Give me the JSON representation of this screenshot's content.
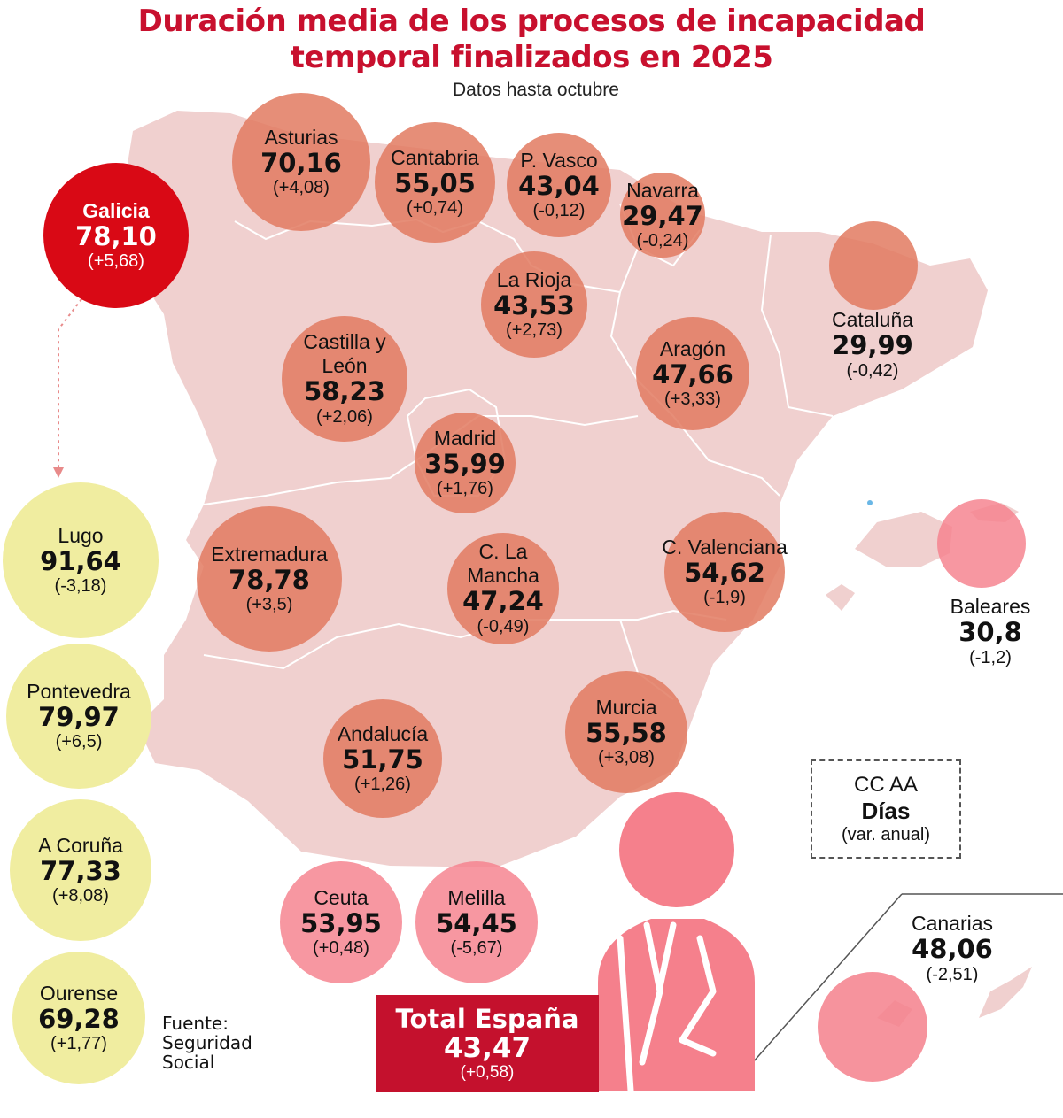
{
  "title_line1": "Duración media de los procesos de incapacidad",
  "title_line2": "temporal finalizados en 2025",
  "subtitle": "Datos hasta octubre",
  "regions": {
    "galicia": {
      "name": "Galicia",
      "value": "78,10",
      "var": "(+5,68)"
    },
    "asturias": {
      "name": "Asturias",
      "value": "70,16",
      "var": "(+4,08)"
    },
    "cantabria": {
      "name": "Cantabria",
      "value": "55,05",
      "var": "(+0,74)"
    },
    "pvasco": {
      "name": "P. Vasco",
      "value": "43,04",
      "var": "(-0,12)"
    },
    "navarra": {
      "name": "Navarra",
      "value": "29,47",
      "var": "(-0,24)"
    },
    "cataluna": {
      "name": "Cataluña",
      "value": "29,99",
      "var": "(-0,42)"
    },
    "larioja": {
      "name": "La Rioja",
      "value": "43,53",
      "var": "(+2,73)"
    },
    "castillayleon": {
      "name": "Castilla y León",
      "value": "58,23",
      "var": "(+2,06)"
    },
    "aragon": {
      "name": "Aragón",
      "value": "47,66",
      "var": "(+3,33)"
    },
    "madrid": {
      "name": "Madrid",
      "value": "35,99",
      "var": "(+1,76)"
    },
    "extremadura": {
      "name": "Extremadura",
      "value": "78,78",
      "var": "(+3,5)"
    },
    "clamancha": {
      "name": "C. La Mancha",
      "value": "47,24",
      "var": "(-0,49)"
    },
    "cvalenciana": {
      "name": "C. Valenciana",
      "value": "54,62",
      "var": "(-1,9)"
    },
    "baleares": {
      "name": "Baleares",
      "value": "30,8",
      "var": "(-1,2)"
    },
    "murcia": {
      "name": "Murcia",
      "value": "55,58",
      "var": "(+3,08)"
    },
    "andalucia": {
      "name": "Andalucía",
      "value": "51,75",
      "var": "(+1,26)"
    },
    "ceuta": {
      "name": "Ceuta",
      "value": "53,95",
      "var": "(+0,48)"
    },
    "melilla": {
      "name": "Melilla",
      "value": "54,45",
      "var": "(-5,67)"
    },
    "canarias": {
      "name": "Canarias",
      "value": "48,06",
      "var": "(-2,51)"
    }
  },
  "provinces": {
    "lugo": {
      "name": "Lugo",
      "value": "91,64",
      "var": "(-3,18)"
    },
    "pontevedra": {
      "name": "Pontevedra",
      "value": "79,97",
      "var": "(+6,5)"
    },
    "acoruna": {
      "name": "A Coruña",
      "value": "77,33",
      "var": "(+8,08)"
    },
    "ourense": {
      "name": "Ourense",
      "value": "69,28",
      "var": "(+1,77)"
    }
  },
  "legend": {
    "line1": "CC AA",
    "line2": "Días",
    "line3": "(var. anual)"
  },
  "total": {
    "label": "Total España",
    "value": "43,47",
    "var": "(+0,58)"
  },
  "source": {
    "line1": "Fuente:",
    "line2": "Seguridad",
    "line3": "Social"
  },
  "colors": {
    "title": "#c8102e",
    "map_fill": "#f0d0cf",
    "bubble_orange": "#e27a60",
    "bubble_pink": "#f5808c",
    "bubble_yellow": "#f0eda0",
    "highlight_red": "#d90915",
    "total_box": "#c4112d"
  }
}
